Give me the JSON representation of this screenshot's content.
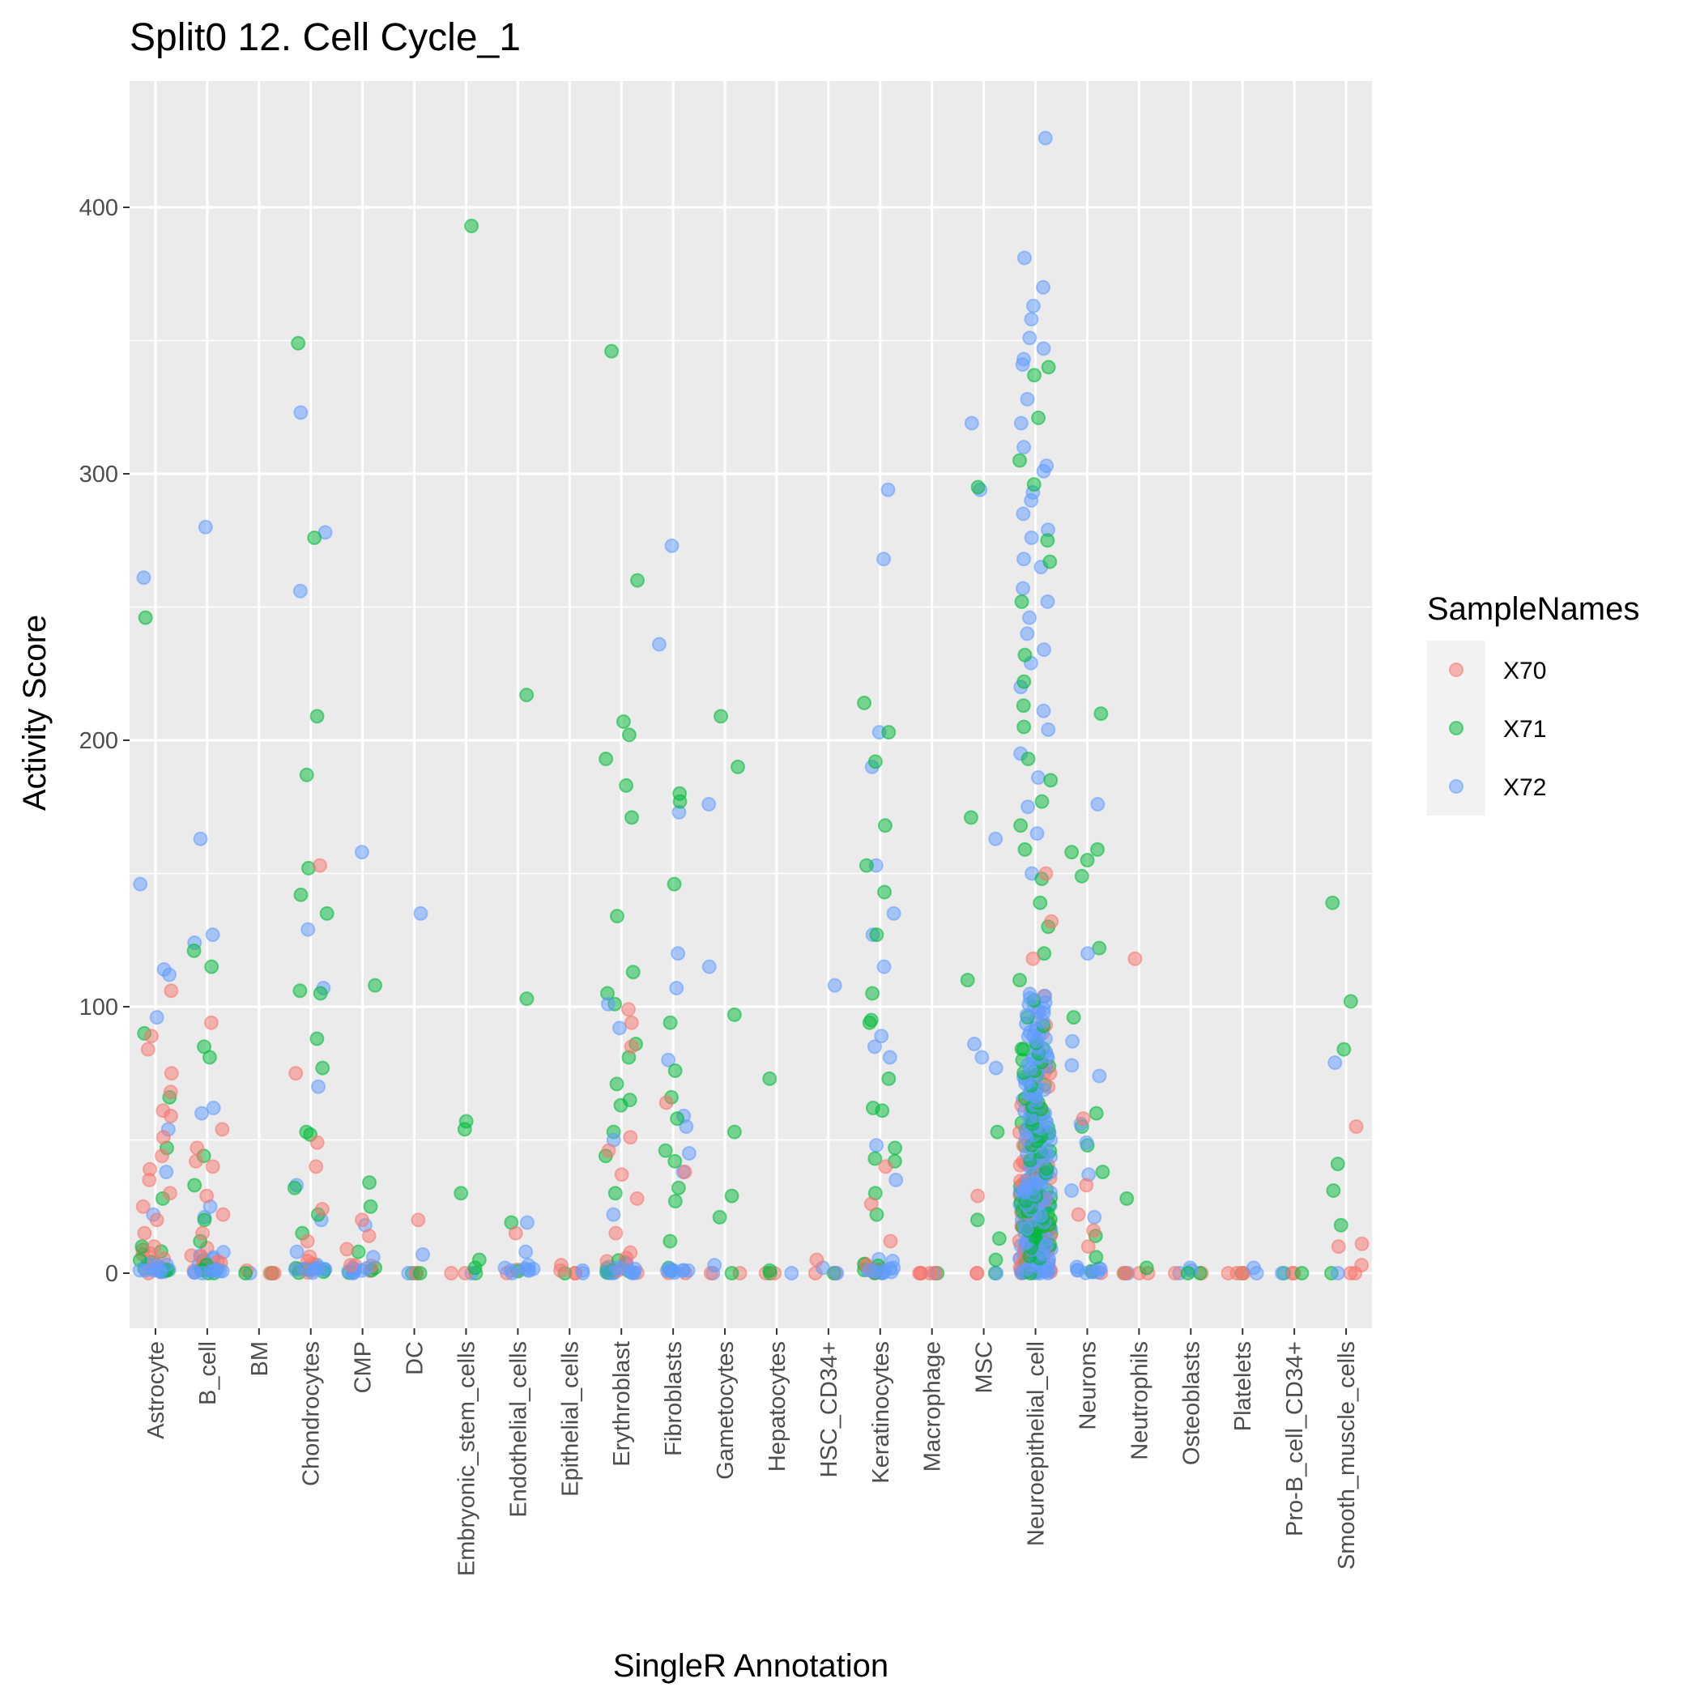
{
  "chart_data": {
    "type": "scatter",
    "title": "Split0 12. Cell Cycle_1",
    "xlabel": "SingleR Annotation",
    "ylabel": "Activity Score",
    "ylim": [
      -20,
      435
    ],
    "yticks": [
      0,
      100,
      200,
      300,
      400
    ],
    "grid": true,
    "legend": {
      "title": "SampleNames",
      "placement": "right",
      "entries": [
        {
          "name": "X70",
          "color": "#F8766D"
        },
        {
          "name": "X71",
          "color": "#00BA38"
        },
        {
          "name": "X72",
          "color": "#619CFF"
        }
      ]
    },
    "categories": [
      "Astrocyte",
      "B_cell",
      "BM",
      "Chondrocytes",
      "CMP",
      "DC",
      "Embryonic_stem_cells",
      "Endothelial_cells",
      "Epithelial_cells",
      "Erythroblast",
      "Fibroblasts",
      "Gametocytes",
      "Hepatocytes",
      "HSC_CD34+",
      "Keratinocytes",
      "Macrophage",
      "MSC",
      "Neuroepithelial_cell",
      "Neurons",
      "Neutrophils",
      "Osteoblasts",
      "Platelets",
      "Pro-B_cell_CD34+",
      "Smooth_muscle_cells"
    ],
    "outliers": [
      {
        "cat": "Astrocyte",
        "series": "X72",
        "values": [
          261,
          146,
          114,
          112,
          96,
          54,
          38,
          22
        ]
      },
      {
        "cat": "Astrocyte",
        "series": "X71",
        "values": [
          246,
          90,
          66,
          47,
          28,
          10
        ]
      },
      {
        "cat": "Astrocyte",
        "series": "X70",
        "values": [
          106,
          89,
          84,
          75,
          68,
          61,
          59,
          51,
          44,
          39,
          35,
          30,
          25,
          20,
          15,
          10
        ]
      },
      {
        "cat": "B_cell",
        "series": "X72",
        "values": [
          280,
          163,
          127,
          124,
          62,
          60,
          25,
          21
        ]
      },
      {
        "cat": "B_cell",
        "series": "X71",
        "values": [
          121,
          115,
          85,
          81,
          44,
          33,
          20,
          12
        ]
      },
      {
        "cat": "B_cell",
        "series": "X70",
        "values": [
          94,
          54,
          47,
          42,
          40,
          29,
          22,
          15
        ]
      },
      {
        "cat": "BM",
        "series": "X70",
        "values": [
          1,
          0
        ]
      },
      {
        "cat": "BM",
        "series": "X71",
        "values": [
          0
        ]
      },
      {
        "cat": "Chondrocytes",
        "series": "X72",
        "values": [
          323,
          278,
          256,
          129,
          107,
          70,
          33,
          20,
          8
        ]
      },
      {
        "cat": "Chondrocytes",
        "series": "X71",
        "values": [
          349,
          276,
          209,
          187,
          152,
          142,
          135,
          106,
          105,
          88,
          77,
          53,
          52,
          32,
          22,
          15
        ]
      },
      {
        "cat": "Chondrocytes",
        "series": "X70",
        "values": [
          153,
          75,
          49,
          40,
          24,
          12
        ]
      },
      {
        "cat": "CMP",
        "series": "X72",
        "values": [
          158,
          18,
          6
        ]
      },
      {
        "cat": "CMP",
        "series": "X71",
        "values": [
          108,
          34,
          25,
          8
        ]
      },
      {
        "cat": "CMP",
        "series": "X70",
        "values": [
          20,
          14,
          9,
          3
        ]
      },
      {
        "cat": "DC",
        "series": "X72",
        "values": [
          135,
          7
        ]
      },
      {
        "cat": "DC",
        "series": "X70",
        "values": [
          20
        ]
      },
      {
        "cat": "DC",
        "series": "X71",
        "values": [
          0
        ]
      },
      {
        "cat": "Embryonic_stem_cells",
        "series": "X71",
        "values": [
          393,
          57,
          54,
          30,
          5,
          2
        ]
      },
      {
        "cat": "Endothelial_cells",
        "series": "X71",
        "values": [
          217,
          103,
          19
        ]
      },
      {
        "cat": "Endothelial_cells",
        "series": "X72",
        "values": [
          19,
          8,
          3
        ]
      },
      {
        "cat": "Endothelial_cells",
        "series": "X70",
        "values": [
          15
        ]
      },
      {
        "cat": "Epithelial_cells",
        "series": "X70",
        "values": [
          3,
          1
        ]
      },
      {
        "cat": "Epithelial_cells",
        "series": "X72",
        "values": [
          1
        ]
      },
      {
        "cat": "Erythroblast",
        "series": "X71",
        "values": [
          346,
          260,
          207,
          202,
          193,
          183,
          171,
          134,
          113,
          105,
          101,
          86,
          81,
          71,
          65,
          63,
          53,
          44,
          30
        ]
      },
      {
        "cat": "Erythroblast",
        "series": "X72",
        "values": [
          101,
          92,
          50,
          22
        ]
      },
      {
        "cat": "Erythroblast",
        "series": "X70",
        "values": [
          99,
          94,
          85,
          51,
          46,
          37,
          28,
          15
        ]
      },
      {
        "cat": "Fibroblasts",
        "series": "X72",
        "values": [
          273,
          236,
          173,
          120,
          107,
          80,
          59,
          55,
          45,
          38
        ]
      },
      {
        "cat": "Fibroblasts",
        "series": "X71",
        "values": [
          180,
          177,
          146,
          94,
          76,
          66,
          58,
          46,
          42,
          32,
          27,
          12
        ]
      },
      {
        "cat": "Fibroblasts",
        "series": "X70",
        "values": [
          64,
          38
        ]
      },
      {
        "cat": "Gametocytes",
        "series": "X71",
        "values": [
          209,
          190,
          97,
          53,
          29,
          21
        ]
      },
      {
        "cat": "Gametocytes",
        "series": "X72",
        "values": [
          176,
          115,
          3
        ]
      },
      {
        "cat": "Hepatocytes",
        "series": "X71",
        "values": [
          73,
          1
        ]
      },
      {
        "cat": "HSC_CD34+",
        "series": "X72",
        "values": [
          108,
          2
        ]
      },
      {
        "cat": "HSC_CD34+",
        "series": "X70",
        "values": [
          5
        ]
      },
      {
        "cat": "Keratinocytes",
        "series": "X72",
        "values": [
          294,
          268,
          203,
          190,
          153,
          135,
          127,
          115,
          89,
          85,
          81,
          48,
          35
        ]
      },
      {
        "cat": "Keratinocytes",
        "series": "X71",
        "values": [
          214,
          203,
          192,
          168,
          153,
          143,
          127,
          105,
          95,
          94,
          73,
          62,
          61,
          47,
          43,
          42,
          30,
          22
        ]
      },
      {
        "cat": "Keratinocytes",
        "series": "X70",
        "values": [
          40,
          26,
          12
        ]
      },
      {
        "cat": "Macrophage",
        "series": "X70",
        "values": [
          0,
          0,
          0
        ]
      },
      {
        "cat": "MSC",
        "series": "X72",
        "values": [
          319,
          294,
          163,
          86,
          81,
          77
        ]
      },
      {
        "cat": "MSC",
        "series": "X71",
        "values": [
          295,
          171,
          110,
          53,
          20,
          13,
          5
        ]
      },
      {
        "cat": "MSC",
        "series": "X70",
        "values": [
          29
        ]
      },
      {
        "cat": "Neuroepithelial_cell",
        "series": "X72",
        "values": [
          426,
          381,
          370,
          363,
          358,
          351,
          347,
          343,
          341,
          328,
          319,
          310,
          303,
          301,
          293,
          290,
          285,
          279,
          276,
          268,
          265,
          257,
          252,
          246,
          240,
          234,
          229,
          220,
          211,
          204,
          195,
          186,
          175,
          165,
          150
        ]
      },
      {
        "cat": "Neuroepithelial_cell",
        "series": "X71",
        "values": [
          340,
          337,
          321,
          305,
          296,
          275,
          267,
          252,
          232,
          222,
          213,
          205,
          193,
          185,
          177,
          168,
          159,
          148,
          139,
          130,
          120,
          110
        ]
      },
      {
        "cat": "Neuroepithelial_cell",
        "series": "X70",
        "values": [
          150,
          132,
          118,
          104,
          90,
          75,
          62,
          48
        ]
      },
      {
        "cat": "Neuroepithelial_cell",
        "series": "X72",
        "band": [
          0,
          105
        ]
      },
      {
        "cat": "Neurons",
        "series": "X71",
        "values": [
          210,
          159,
          158,
          155,
          149,
          122,
          96,
          60,
          55,
          48,
          38,
          14,
          6
        ]
      },
      {
        "cat": "Neurons",
        "series": "X72",
        "values": [
          176,
          120,
          87,
          78,
          74,
          56,
          49,
          37,
          31,
          21
        ]
      },
      {
        "cat": "Neurons",
        "series": "X70",
        "values": [
          58,
          33,
          22,
          16,
          10
        ]
      },
      {
        "cat": "Neutrophils",
        "series": "X70",
        "values": [
          118,
          0,
          0
        ]
      },
      {
        "cat": "Neutrophils",
        "series": "X71",
        "values": [
          28,
          2
        ]
      },
      {
        "cat": "Osteoblasts",
        "series": "X72",
        "values": [
          2,
          1
        ]
      },
      {
        "cat": "Osteoblasts",
        "series": "X71",
        "values": [
          0
        ]
      },
      {
        "cat": "Platelets",
        "series": "X70",
        "values": [
          0,
          0
        ]
      },
      {
        "cat": "Platelets",
        "series": "X72",
        "values": [
          2
        ]
      },
      {
        "cat": "Pro-B_cell_CD34+",
        "series": "X71",
        "values": [
          0
        ]
      },
      {
        "cat": "Smooth_muscle_cells",
        "series": "X71",
        "values": [
          139,
          102,
          84,
          41,
          31,
          18
        ]
      },
      {
        "cat": "Smooth_muscle_cells",
        "series": "X72",
        "values": [
          79
        ]
      },
      {
        "cat": "Smooth_muscle_cells",
        "series": "X70",
        "values": [
          55,
          11,
          10,
          3
        ]
      }
    ],
    "base_cluster_height": {
      "Astrocyte": 12,
      "B_cell": 12,
      "BM": 0,
      "Chondrocytes": 8,
      "CMP": 4,
      "DC": 0,
      "Embryonic_stem_cells": 0,
      "Endothelial_cells": 2,
      "Epithelial_cells": 0,
      "Erythroblast": 10,
      "Fibroblasts": 3,
      "Gametocytes": 0,
      "Hepatocytes": 0,
      "HSC_CD34+": 0,
      "Keratinocytes": 8,
      "Macrophage": 0,
      "MSC": 0,
      "Neuroepithelial_cell": 105,
      "Neurons": 3,
      "Neutrophils": 0,
      "Osteoblasts": 0,
      "Platelets": 0,
      "Pro-B_cell_CD34+": 0,
      "Smooth_muscle_cells": 0
    }
  }
}
